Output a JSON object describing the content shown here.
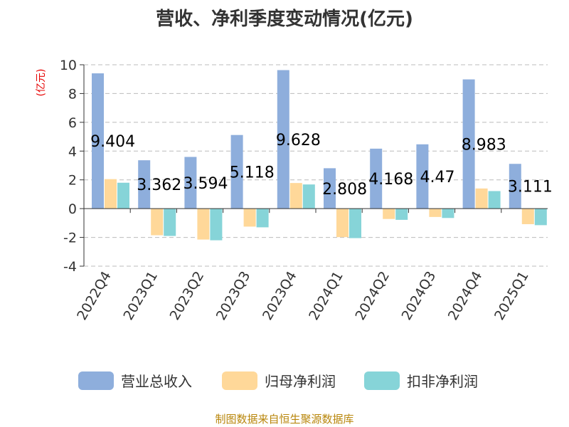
{
  "chart_data": {
    "type": "bar",
    "title": "营收、净利季度变动情况(亿元)",
    "ylabel": "(亿元)",
    "ylim": [
      -4,
      10
    ],
    "yticks": [
      -4,
      -2,
      0,
      2,
      4,
      6,
      8,
      10
    ],
    "grid": true,
    "legend_position": "bottom",
    "categories": [
      "2022Q4",
      "2023Q1",
      "2023Q2",
      "2023Q3",
      "2023Q4",
      "2024Q1",
      "2024Q2",
      "2024Q3",
      "2024Q4",
      "2025Q1"
    ],
    "series": [
      {
        "name": "营业总收入",
        "color": "#8eaedc",
        "values": [
          9.404,
          3.362,
          3.594,
          5.118,
          9.628,
          2.808,
          4.168,
          4.47,
          8.983,
          3.111
        ]
      },
      {
        "name": "归母净利润",
        "color": "#ffd899",
        "values": [
          2.05,
          -1.85,
          -2.15,
          -1.25,
          1.78,
          -1.98,
          -0.72,
          -0.58,
          1.4,
          -1.08
        ]
      },
      {
        "name": "扣非净利润",
        "color": "#86d4d8",
        "values": [
          1.8,
          -1.9,
          -2.2,
          -1.3,
          1.68,
          -2.05,
          -0.78,
          -0.65,
          1.22,
          -1.15
        ]
      }
    ],
    "data_labels": [
      "9.404",
      "3.362",
      "3.594",
      "5.118",
      "9.628",
      "2.808",
      "4.168",
      "4.47",
      "8.983",
      "3.111"
    ]
  },
  "footer": {
    "source": "制图数据来自恒生聚源数据库"
  },
  "colors": {
    "title": "#333333",
    "ylabel": "#e60000",
    "grid": "#bbbbbb",
    "axis": "#333333",
    "source": "#b8860b"
  }
}
